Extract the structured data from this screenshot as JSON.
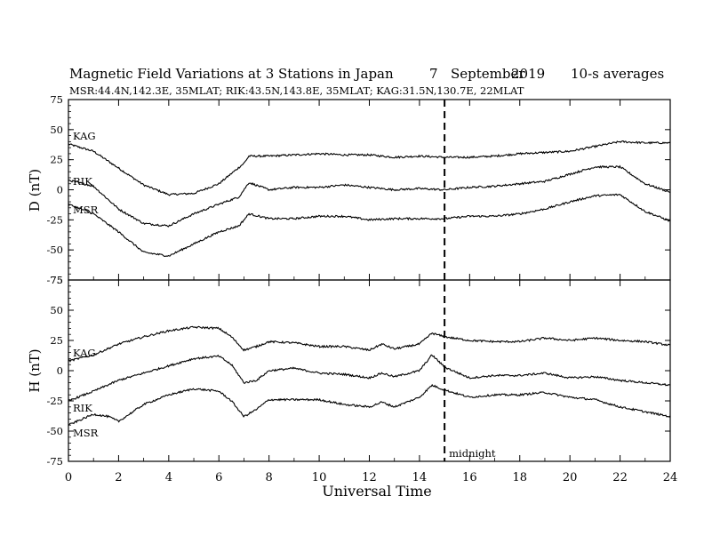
{
  "header": {
    "title": "Magnetic Field Variations at 3 Stations in Japan",
    "day": "7",
    "month": "September",
    "year": "2019",
    "averaging": "10-s averages",
    "stations_line": "MSR:44.4N,142.3E, 35MLAT;  RIK:43.5N,143.8E, 35MLAT;  KAG:31.5N,130.7E, 22MLAT"
  },
  "annotation": {
    "midnight_label": "midnight",
    "midnight_ut": 15
  },
  "chart_data": [
    {
      "type": "line",
      "panel": "D",
      "ylabel": "D (nT)",
      "xlabel": "",
      "xlim": [
        0,
        24
      ],
      "ylim": [
        -75,
        75
      ],
      "yticks": [
        -75,
        -50,
        -25,
        0,
        25,
        50,
        75
      ],
      "xticks": [
        0,
        2,
        4,
        6,
        8,
        10,
        12,
        14,
        16,
        18,
        20,
        22,
        24
      ],
      "series": [
        {
          "name": "KAG",
          "color": "#000000",
          "x": [
            0,
            1,
            2,
            3,
            4,
            5,
            6,
            7,
            7.2,
            8,
            9,
            10,
            11,
            12,
            13,
            14,
            15,
            16,
            17,
            18,
            19,
            20,
            21,
            22,
            23,
            24
          ],
          "y": [
            38,
            32,
            18,
            4,
            -4,
            -3,
            5,
            22,
            28,
            28,
            29,
            30,
            29,
            29,
            27,
            28,
            27,
            27,
            28,
            30,
            31,
            32,
            36,
            40,
            39,
            39
          ]
        },
        {
          "name": "RIK",
          "color": "#000000",
          "x": [
            0,
            1,
            2,
            3,
            4,
            5,
            6,
            6.8,
            7.2,
            8,
            9,
            10,
            11,
            12,
            13,
            14,
            15,
            16,
            17,
            18,
            19,
            20,
            21,
            22,
            23,
            24
          ],
          "y": [
            8,
            3,
            -16,
            -28,
            -30,
            -20,
            -12,
            -6,
            6,
            0,
            2,
            2,
            4,
            2,
            0,
            1,
            0,
            2,
            3,
            5,
            7,
            13,
            19,
            19,
            5,
            -2
          ]
        },
        {
          "name": "MSR",
          "color": "#000000",
          "x": [
            0,
            1,
            2,
            3,
            4,
            5,
            6,
            6.8,
            7.2,
            8,
            9,
            10,
            11,
            12,
            13,
            14,
            15,
            16,
            17,
            18,
            19,
            20,
            21,
            22,
            23,
            24
          ],
          "y": [
            -12,
            -20,
            -35,
            -52,
            -55,
            -45,
            -35,
            -30,
            -20,
            -24,
            -24,
            -22,
            -22,
            -25,
            -24,
            -24,
            -24,
            -22,
            -22,
            -20,
            -16,
            -10,
            -5,
            -4,
            -18,
            -26
          ]
        }
      ]
    },
    {
      "type": "line",
      "panel": "H",
      "ylabel": "H (nT)",
      "xlabel": "Universal Time",
      "xlim": [
        0,
        24
      ],
      "ylim": [
        -75,
        75
      ],
      "yticks": [
        -75,
        -50,
        -25,
        0,
        25,
        50,
        75
      ],
      "xticks": [
        0,
        2,
        4,
        6,
        8,
        10,
        12,
        14,
        16,
        18,
        20,
        22,
        24
      ],
      "series": [
        {
          "name": "KAG",
          "color": "#000000",
          "x": [
            0,
            1,
            2,
            3,
            4,
            5,
            6,
            6.5,
            7,
            7.5,
            8,
            9,
            10,
            11,
            12,
            12.5,
            13,
            14,
            14.5,
            15,
            16,
            17,
            18,
            19,
            20,
            21,
            22,
            23,
            24
          ],
          "y": [
            8,
            13,
            22,
            28,
            33,
            36,
            35,
            28,
            17,
            20,
            24,
            23,
            20,
            20,
            17,
            22,
            18,
            22,
            31,
            28,
            25,
            24,
            24,
            27,
            25,
            27,
            25,
            24,
            21
          ]
        },
        {
          "name": "RIK",
          "color": "#000000",
          "x": [
            0,
            1,
            2,
            3,
            4,
            5,
            6,
            6.5,
            7,
            7.5,
            8,
            9,
            10,
            11,
            12,
            12.5,
            13,
            14,
            14.5,
            15,
            16,
            17,
            18,
            19,
            20,
            21,
            22,
            23,
            24
          ],
          "y": [
            -25,
            -17,
            -8,
            -2,
            4,
            10,
            12,
            5,
            -10,
            -8,
            0,
            2,
            -2,
            -3,
            -6,
            -2,
            -5,
            0,
            13,
            3,
            -6,
            -4,
            -4,
            -2,
            -6,
            -5,
            -8,
            -10,
            -12
          ]
        },
        {
          "name": "MSR",
          "color": "#000000",
          "x": [
            0,
            1,
            1.6,
            2,
            3,
            4,
            5,
            6,
            6.5,
            7,
            7.5,
            8,
            9,
            10,
            11,
            12,
            12.5,
            13,
            14,
            14.5,
            15,
            16,
            17,
            18,
            19,
            20,
            21,
            22,
            23,
            24
          ],
          "y": [
            -45,
            -36,
            -38,
            -42,
            -28,
            -20,
            -15,
            -17,
            -25,
            -38,
            -32,
            -24,
            -24,
            -24,
            -28,
            -30,
            -26,
            -30,
            -22,
            -12,
            -16,
            -22,
            -20,
            -20,
            -18,
            -22,
            -24,
            -30,
            -34,
            -38
          ]
        }
      ]
    }
  ]
}
